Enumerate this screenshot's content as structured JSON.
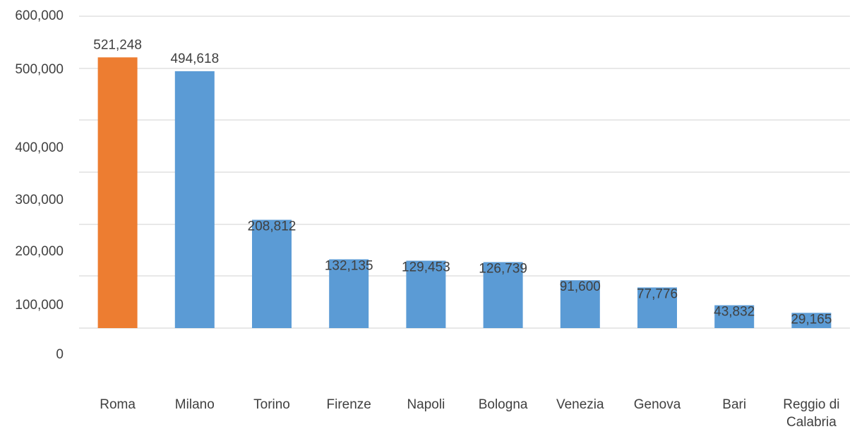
{
  "chart_data": {
    "type": "bar",
    "categories": [
      "Roma",
      "Milano",
      "Torino",
      "Firenze",
      "Napoli",
      "Bologna",
      "Venezia",
      "Genova",
      "Bari",
      "Reggio di Calabria"
    ],
    "values": [
      521248,
      494618,
      208812,
      132135,
      129453,
      126739,
      91600,
      77776,
      43832,
      29165
    ],
    "value_labels": [
      "521,248",
      "494,618",
      "208,812",
      "132,135",
      "129,453",
      "126,739",
      "91,600",
      "77,776",
      "43,832",
      "29,165"
    ],
    "highlight_category": "Roma",
    "colors": {
      "highlight": "#ED7D31",
      "default": "#5B9BD5",
      "grid": "#D9D9D9",
      "text": "#404040"
    },
    "y_ticks": [
      0,
      100000,
      200000,
      300000,
      400000,
      500000,
      600000
    ],
    "y_tick_labels": [
      "0",
      "100,000",
      "200,000",
      "300,000",
      "400,000",
      "500,000",
      "600,000"
    ],
    "ylim": [
      0,
      600000
    ],
    "grid": true,
    "legend": "none",
    "title": "",
    "xlabel": "",
    "ylabel": ""
  }
}
